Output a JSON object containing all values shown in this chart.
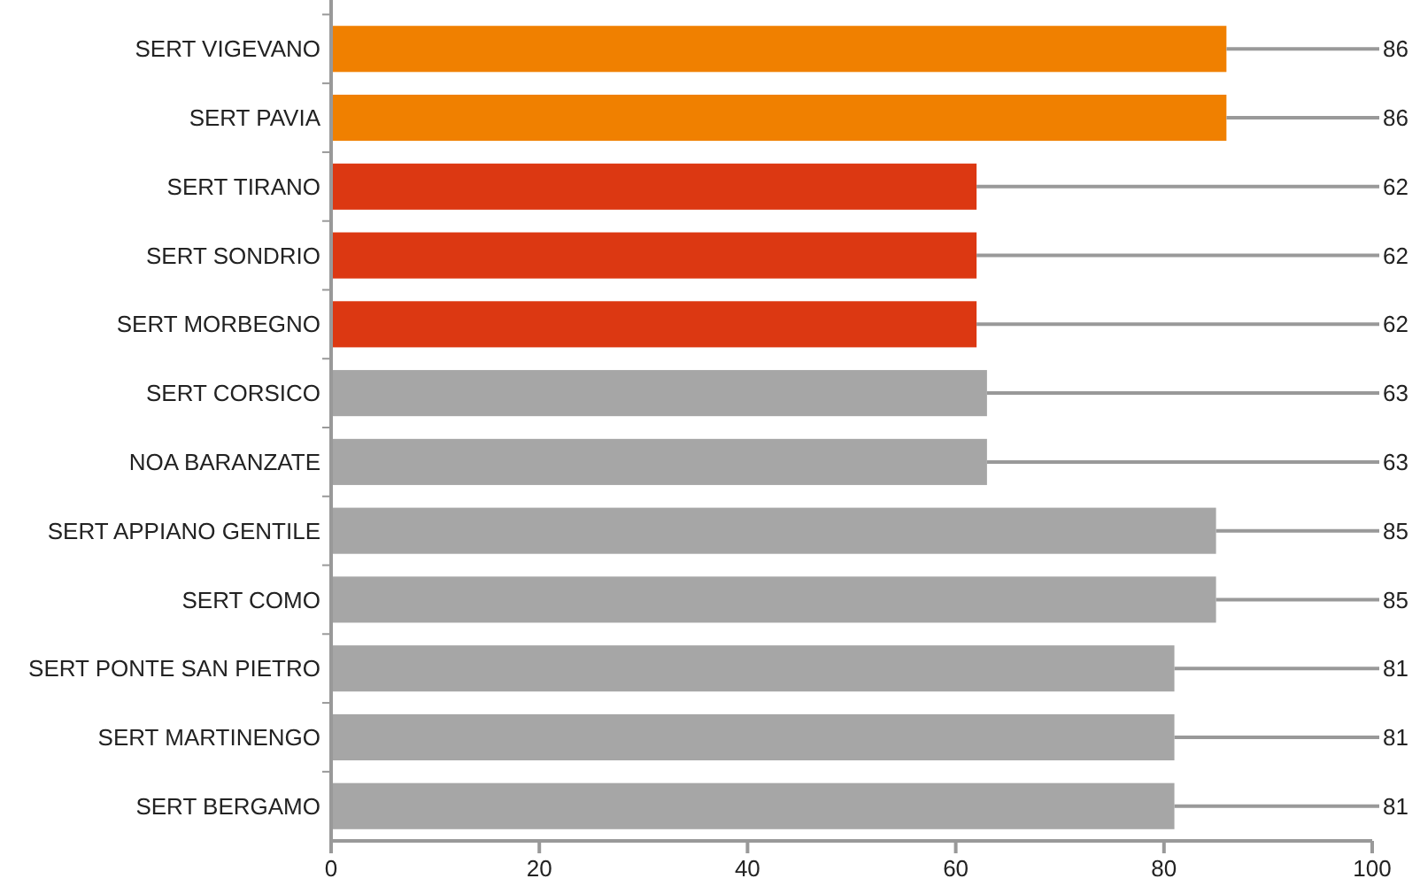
{
  "chart_data": {
    "type": "bar",
    "orientation": "horizontal",
    "categories": [
      "SERT VIGEVANO",
      "SERT PAVIA",
      "SERT TIRANO",
      "SERT SONDRIO",
      "SERT MORBEGNO",
      "SERT CORSICO",
      "NOA BARANZATE",
      "SERT APPIANO GENTILE",
      "SERT COMO",
      "SERT PONTE SAN PIETRO",
      "SERT MARTINENGO",
      "SERT BERGAMO"
    ],
    "values": [
      86,
      86,
      62,
      62,
      62,
      63,
      63,
      85,
      85,
      81,
      81,
      81
    ],
    "colors": [
      "#f08000",
      "#f08000",
      "#dc3812",
      "#dc3812",
      "#dc3812",
      "#a6a6a6",
      "#a6a6a6",
      "#a6a6a6",
      "#a6a6a6",
      "#a6a6a6",
      "#a6a6a6",
      "#a6a6a6"
    ],
    "xlim": [
      0,
      100
    ],
    "xticks": [
      0,
      20,
      40,
      60,
      80,
      100
    ],
    "grid": false,
    "data_labels": true
  }
}
